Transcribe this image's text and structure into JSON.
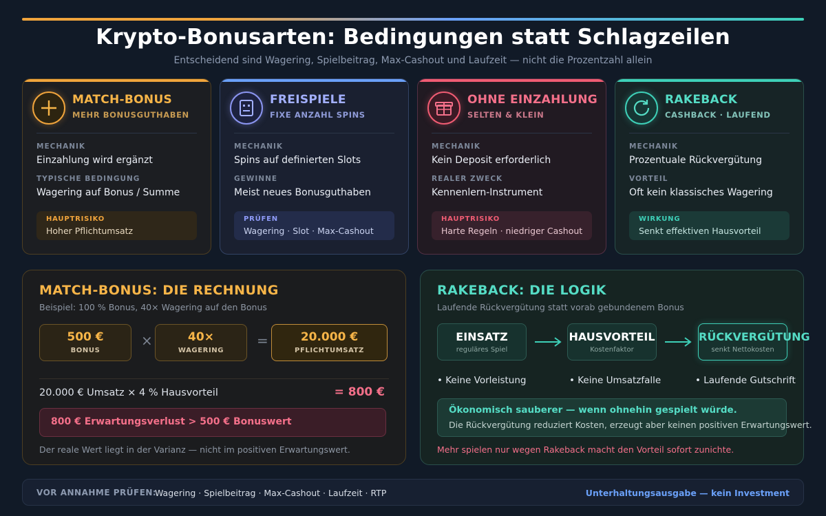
{
  "header": {
    "title": "Krypto-Bonusarten: Bedingungen statt Schlagzeilen",
    "subtitle": "Entscheidend sind Wagering, Spielbeitrag, Max-Cashout und Laufzeit — nicht die Prozentzahl allein"
  },
  "colors": {
    "orange": "#f0a43c",
    "blue": "#6aa0f8",
    "red": "#f05c73",
    "teal": "#3ed0b8",
    "background": "#111a27"
  },
  "cards": [
    {
      "icon": "plus-icon",
      "title": "MATCH-BONUS",
      "subtitle": "MEHR BONUSGUTHABEN",
      "label1": "MECHANIK",
      "value1": "Einzahlung wird ergänzt",
      "label2": "TYPISCHE BEDINGUNG",
      "value2": "Wagering auf Bonus / Summe",
      "box_label": "HAUPTRISIKO",
      "box_value": "Hoher Pflichtumsatz"
    },
    {
      "icon": "slot-machine-icon",
      "title": "FREISPIELE",
      "subtitle": "FIXE ANZAHL SPINS",
      "label1": "MECHANIK",
      "value1": "Spins auf definierten Slots",
      "label2": "GEWINNE",
      "value2": "Meist neues Bonusguthaben",
      "box_label": "PRÜFEN",
      "box_value": "Wagering · Slot · Max-Cashout"
    },
    {
      "icon": "gift-box-icon",
      "title": "OHNE EINZAHLUNG",
      "subtitle": "SELTEN & KLEIN",
      "label1": "MECHANIK",
      "value1": "Kein Deposit erforderlich",
      "label2": "REALER ZWECK",
      "value2": "Kennenlern-Instrument",
      "box_label": "HAUPTRISIKO",
      "box_value": "Harte Regeln · niedriger Cashout"
    },
    {
      "icon": "refresh-icon",
      "title": "RAKEBACK",
      "subtitle": "CASHBACK · LAUFEND",
      "label1": "MECHANIK",
      "value1": "Prozentuale Rückvergütung",
      "label2": "VORTEIL",
      "value2": "Oft kein klassisches Wagering",
      "box_label": "WIRKUNG",
      "box_value": "Senkt effektiven Hausvorteil"
    }
  ],
  "match_calc": {
    "title": "MATCH-BONUS: DIE RECHNUNG",
    "subtitle": "Beispiel: 100 % Bonus, 40× Wagering auf den Bonus",
    "boxes": [
      {
        "value": "500 €",
        "label": "BONUS"
      },
      {
        "value": "40×",
        "label": "WAGERING"
      },
      {
        "value": "20.000 €",
        "label": "PFLICHTUMSATZ"
      }
    ],
    "op_multiply": "×",
    "op_equals": "=",
    "calc_text": "20.000 € Umsatz × 4 % Hausvorteil",
    "calc_result": "= 800 €",
    "warning": "800 € Erwartungsverlust > 500 € Bonuswert",
    "footnote": "Der reale Wert liegt in der Varianz — nicht im positiven Erwartungswert."
  },
  "rakeback_logic": {
    "title": "RAKEBACK: DIE LOGIK",
    "subtitle": "Laufende Rückvergütung statt vorab gebundenem Bonus",
    "flow": [
      {
        "value": "EINSATZ",
        "label": "reguläres Spiel"
      },
      {
        "value": "HAUSVORTEIL",
        "label": "Kostenfaktor"
      },
      {
        "value": "RÜCKVERGÜTUNG",
        "label": "senkt Nettokosten"
      }
    ],
    "bullets": [
      "• Keine Vorleistung",
      "• Keine Umsatzfalle",
      "• Laufende Gutschrift"
    ],
    "highlight_title": "Ökonomisch sauberer — wenn ohnehin gespielt würde.",
    "highlight_text": "Die Rückvergütung reduziert Kosten, erzeugt aber keinen positiven Erwartungswert.",
    "footnote": "Mehr spielen nur wegen Rakeback macht den Vorteil sofort zunichte."
  },
  "footer": {
    "label": "VOR ANNAHME PRÜFEN:",
    "items": "Wagering · Spielbeitrag · Max-Cashout · Laufzeit · RTP",
    "note": "Unterhaltungsausgabe — kein Investment"
  }
}
